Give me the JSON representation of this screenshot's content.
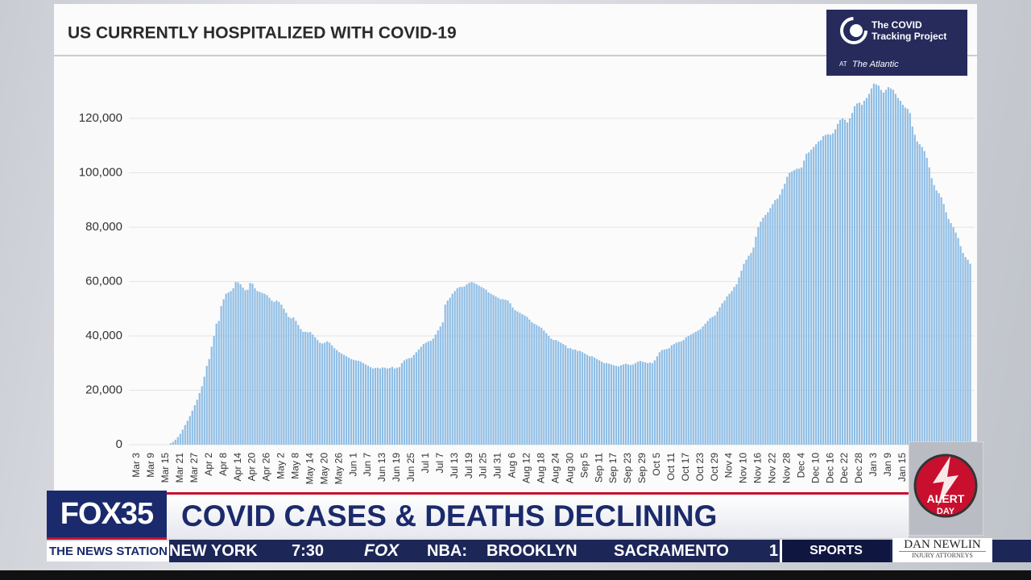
{
  "chart_data": {
    "type": "bar",
    "title": "US CURRENTLY HOSPITALIZED WITH COVID-19",
    "color": "#8fbde4",
    "grid": true,
    "ylim": [
      0,
      135000
    ],
    "yticks": [
      0,
      {
        "value": 20000,
        "label": "20,000"
      },
      {
        "value": 40000,
        "label": "40,000"
      },
      {
        "value": 60000,
        "label": "60,000"
      },
      {
        "value": 80000,
        "label": "80,000"
      },
      {
        "value": 100000,
        "label": "100,000"
      },
      {
        "value": 120000,
        "label": "120,000"
      }
    ],
    "categories": [
      "Mar 3",
      null,
      null,
      null,
      null,
      null,
      "Mar 9",
      null,
      null,
      null,
      null,
      null,
      "Mar 15",
      null,
      null,
      null,
      null,
      null,
      "Mar 21",
      null,
      null,
      null,
      null,
      null,
      "Mar 27",
      null,
      null,
      null,
      null,
      null,
      "Apr 2",
      null,
      null,
      null,
      null,
      null,
      "Apr 8",
      null,
      null,
      null,
      null,
      null,
      "Apr 14",
      null,
      null,
      null,
      null,
      null,
      "Apr 20",
      null,
      null,
      null,
      null,
      null,
      "Apr 26",
      null,
      null,
      null,
      null,
      null,
      "May 2",
      null,
      null,
      null,
      null,
      null,
      "May 8",
      null,
      null,
      null,
      null,
      null,
      "May 14",
      null,
      null,
      null,
      null,
      null,
      "May 20",
      null,
      null,
      null,
      null,
      null,
      "May 26",
      null,
      null,
      null,
      null,
      null,
      "Jun 1",
      null,
      null,
      null,
      null,
      null,
      "Jun 7",
      null,
      null,
      null,
      null,
      null,
      "Jun 13",
      null,
      null,
      null,
      null,
      null,
      "Jun 19",
      null,
      null,
      null,
      null,
      null,
      "Jun 25",
      null,
      null,
      null,
      null,
      null,
      "Jul 1",
      null,
      null,
      null,
      null,
      null,
      "Jul 7",
      null,
      null,
      null,
      null,
      null,
      "Jul 13",
      null,
      null,
      null,
      null,
      null,
      "Jul 19",
      null,
      null,
      null,
      null,
      null,
      "Jul 25",
      null,
      null,
      null,
      null,
      null,
      "Jul 31",
      null,
      null,
      null,
      null,
      null,
      "Aug 6",
      null,
      null,
      null,
      null,
      null,
      "Aug 12",
      null,
      null,
      null,
      null,
      null,
      "Aug 18",
      null,
      null,
      null,
      null,
      null,
      "Aug 24",
      null,
      null,
      null,
      null,
      null,
      "Aug 30",
      null,
      null,
      null,
      null,
      null,
      "Sep 5",
      null,
      null,
      null,
      null,
      null,
      "Sep 11",
      null,
      null,
      null,
      null,
      null,
      "Sep 17",
      null,
      null,
      null,
      null,
      null,
      "Sep 23",
      null,
      null,
      null,
      null,
      null,
      "Sep 29",
      null,
      null,
      null,
      null,
      null,
      "Oct 5",
      null,
      null,
      null,
      null,
      null,
      "Oct 11",
      null,
      null,
      null,
      null,
      null,
      "Oct 17",
      null,
      null,
      null,
      null,
      null,
      "Oct 23",
      null,
      null,
      null,
      null,
      null,
      "Oct 29",
      null,
      null,
      null,
      null,
      null,
      "Nov 4",
      null,
      null,
      null,
      null,
      null,
      "Nov 10",
      null,
      null,
      null,
      null,
      null,
      "Nov 16",
      null,
      null,
      null,
      null,
      null,
      "Nov 22",
      null,
      null,
      null,
      null,
      null,
      "Nov 28",
      null,
      null,
      null,
      null,
      null,
      "Dec 4",
      null,
      null,
      null,
      null,
      null,
      "Dec 10",
      null,
      null,
      null,
      null,
      null,
      "Dec 16",
      null,
      null,
      null,
      null,
      null,
      "Dec 22",
      null,
      null,
      null,
      null,
      null,
      "Dec 28",
      null,
      null,
      null,
      null,
      null,
      "Jan 3",
      null,
      null,
      null,
      null,
      null,
      "Jan 9",
      null,
      null,
      null,
      null,
      null,
      "Jan 15",
      null,
      null,
      null,
      null,
      null,
      null,
      null,
      null,
      null,
      null,
      null,
      null,
      null,
      null,
      null,
      null,
      null,
      null,
      null,
      null,
      null,
      null,
      null,
      null,
      null,
      null,
      null,
      null
    ],
    "values": [
      null,
      null,
      null,
      null,
      null,
      null,
      null,
      null,
      null,
      null,
      null,
      null,
      null,
      null,
      500,
      1000,
      1800,
      2800,
      4000,
      5500,
      7200,
      8800,
      10500,
      12500,
      14500,
      16500,
      19000,
      21500,
      25000,
      29000,
      31500,
      36000,
      40000,
      44500,
      45500,
      51000,
      53500,
      55500,
      56000,
      56500,
      57500,
      59800,
      59700,
      59000,
      57800,
      56800,
      57000,
      59500,
      59200,
      57500,
      56500,
      56200,
      55800,
      55500,
      55000,
      54000,
      53000,
      52500,
      53000,
      52500,
      51500,
      50000,
      48500,
      47000,
      46500,
      46800,
      45500,
      44000,
      42500,
      41500,
      41500,
      41300,
      41400,
      40500,
      39500,
      38500,
      37500,
      37200,
      37500,
      38000,
      37500,
      36500,
      35500,
      34800,
      34000,
      33500,
      33000,
      32500,
      32000,
      31500,
      31200,
      31000,
      30800,
      30500,
      30000,
      29500,
      29000,
      28500,
      28000,
      28200,
      28300,
      28000,
      28400,
      28300,
      28000,
      28200,
      28600,
      28000,
      28300,
      28500,
      30000,
      31000,
      31500,
      31800,
      32000,
      33000,
      34000,
      35000,
      36000,
      37000,
      37500,
      38000,
      38200,
      39000,
      40500,
      42000,
      43500,
      45000,
      51500,
      53000,
      54000,
      55500,
      56500,
      57500,
      58000,
      58000,
      58200,
      59000,
      59500,
      59800,
      59500,
      59000,
      58500,
      58000,
      57500,
      57000,
      56000,
      55500,
      55000,
      54500,
      54000,
      53500,
      53500,
      53300,
      53000,
      52000,
      50500,
      49500,
      49000,
      48500,
      48000,
      47500,
      47000,
      46000,
      45000,
      44500,
      44000,
      43500,
      43000,
      42000,
      41000,
      40000,
      39000,
      38500,
      38500,
      38000,
      37500,
      37000,
      36500,
      35500,
      35500,
      35000,
      35000,
      34500,
      34500,
      34000,
      33500,
      33000,
      32500,
      32500,
      32000,
      31500,
      31000,
      30500,
      30000,
      30000,
      29800,
      29500,
      29200,
      29000,
      28800,
      29200,
      29500,
      29800,
      29500,
      29300,
      29500,
      30000,
      30500,
      30800,
      30500,
      30300,
      30000,
      30200,
      30000,
      31000,
      32500,
      34000,
      34800,
      35000,
      35200,
      35500,
      36500,
      37000,
      37500,
      37800,
      38000,
      38500,
      39500,
      40000,
      40500,
      41000,
      41500,
      42000,
      42500,
      43500,
      44500,
      45500,
      46500,
      47000,
      47500,
      49000,
      50500,
      52000,
      53000,
      54500,
      55500,
      56500,
      58000,
      59000,
      61500,
      64000,
      66500,
      68000,
      69500,
      70500,
      72500,
      76500,
      80000,
      82000,
      83500,
      84500,
      85500,
      87000,
      88500,
      90000,
      90500,
      92000,
      94000,
      96000,
      98500,
      100000,
      100500,
      101000,
      101500,
      101500,
      102000,
      104500,
      107000,
      107500,
      108500,
      109500,
      110500,
      111500,
      112000,
      113500,
      114000,
      114200,
      114000,
      114500,
      116000,
      118000,
      119500,
      120000,
      119500,
      118500,
      120000,
      122000,
      124500,
      125500,
      125800,
      125000,
      126500,
      127500,
      129000,
      131000,
      132800,
      132500,
      132000,
      130500,
      129500,
      130500,
      131500,
      131000,
      130500,
      129000,
      127500,
      126500,
      125000,
      124000,
      123500,
      122000,
      117000,
      114000,
      111500,
      110500,
      109500,
      108000,
      105500,
      102000,
      98000,
      95500,
      93500,
      92500,
      91000,
      88500,
      85500,
      83000,
      81500,
      80000,
      78000,
      76000,
      73000,
      70500,
      69000,
      68000,
      66500
    ]
  },
  "logo": {
    "line1": "The COVID",
    "line2": "Tracking Project",
    "at": "AT",
    "publisher": "The Atlantic"
  },
  "lower_third": {
    "station": "FOX35",
    "headline": "COVID CASES & DEATHS DECLINING",
    "tagline": "THE NEWS STATION",
    "ticker": [
      "NEW YORK",
      "7:30",
      "FOX",
      "NBA:",
      "BROOKLYN",
      "SACRAMENTO",
      "1"
    ],
    "sports": "SPORTS",
    "alert_line1": "ALERT",
    "alert_line2": "DAY",
    "sponsor": "DAN NEWLIN",
    "sponsor_sub": "INJURY ATTORNEYS"
  }
}
